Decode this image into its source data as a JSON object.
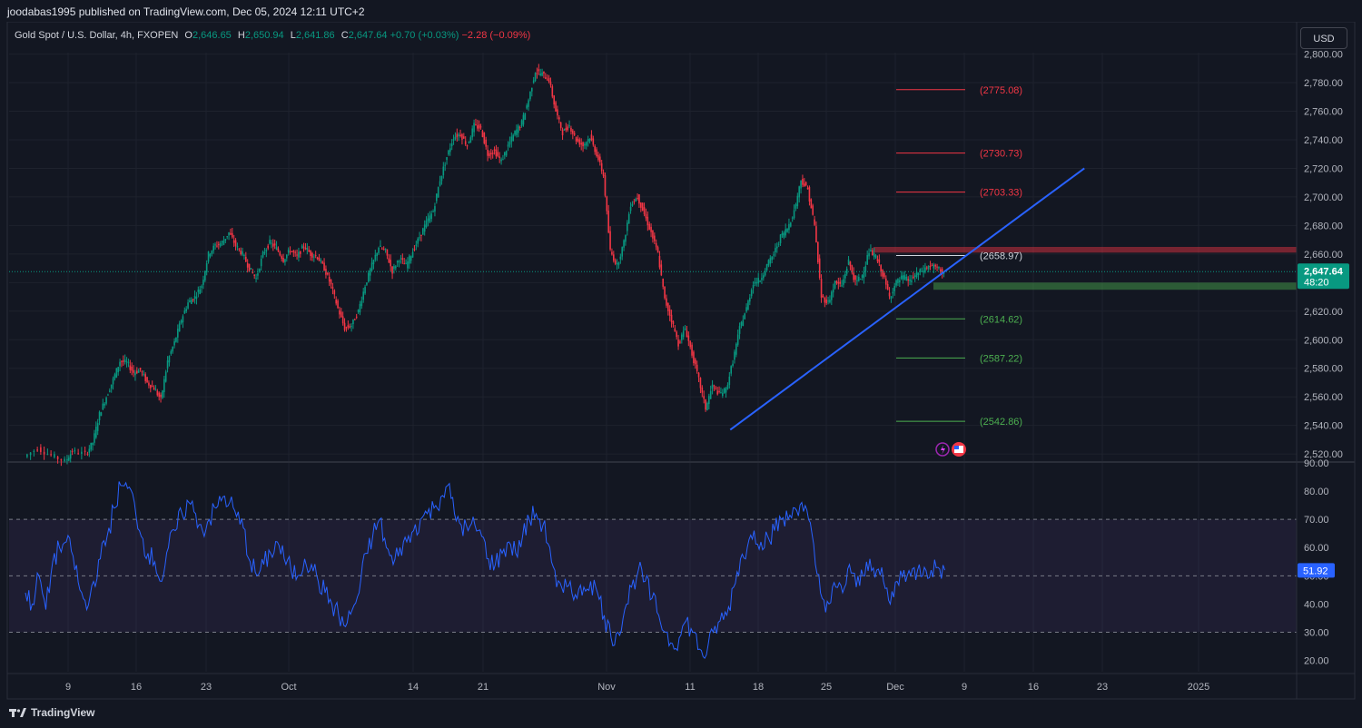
{
  "header": {
    "publisher": "joodabas1995 published on TradingView.com, Dec 05, 2024 12:11 UTC+2",
    "symbol": "Gold Spot / U.S. Dollar, 4h, FXOPEN",
    "open_label": "O",
    "open": "2,646.65",
    "high_label": "H",
    "high": "2,650.94",
    "low_label": "L",
    "low": "2,641.86",
    "close_label": "C",
    "close": "2,647.64",
    "change": "+0.70 (+0.03%)",
    "change2": "−2.28 (−0.09%)"
  },
  "currency": "USD",
  "footer": {
    "brand": "TradingView"
  },
  "colors": {
    "up": "#089981",
    "down": "#f23645",
    "trendline": "#2962ff",
    "rsi": "#2962ff",
    "bg": "#131722"
  },
  "chart_data": {
    "type": "candlestick",
    "symbol": "XAUUSD",
    "timeframe": "4h",
    "price_axis_ticks": [
      "2,800.00",
      "2,780.00",
      "2,760.00",
      "2,740.00",
      "2,720.00",
      "2,700.00",
      "2,680.00",
      "2,660.00",
      "2,640.00",
      "2,620.00",
      "2,600.00",
      "2,580.00",
      "2,560.00",
      "2,540.00",
      "2,520.00"
    ],
    "price_range": [
      2515,
      2801
    ],
    "time_axis_ticks": [
      "9",
      "16",
      "23",
      "Oct",
      "14",
      "21",
      "Nov",
      "11",
      "18",
      "25",
      "Dec",
      "9",
      "16",
      "23",
      "2025"
    ],
    "close_path": [
      [
        0,
        2518
      ],
      [
        2,
        2524
      ],
      [
        4,
        2519
      ],
      [
        6,
        2515
      ],
      [
        7,
        2522
      ],
      [
        9,
        2520
      ],
      [
        10,
        2528
      ],
      [
        11,
        2548
      ],
      [
        12,
        2560
      ],
      [
        13,
        2572
      ],
      [
        14,
        2585
      ],
      [
        15,
        2584
      ],
      [
        16,
        2577
      ],
      [
        17,
        2579
      ],
      [
        18,
        2570
      ],
      [
        19,
        2566
      ],
      [
        20,
        2558
      ],
      [
        21,
        2585
      ],
      [
        22,
        2598
      ],
      [
        23,
        2614
      ],
      [
        24,
        2626
      ],
      [
        25,
        2630
      ],
      [
        26,
        2638
      ],
      [
        27,
        2660
      ],
      [
        28,
        2666
      ],
      [
        29,
        2668
      ],
      [
        30,
        2675
      ],
      [
        31,
        2666
      ],
      [
        32,
        2660
      ],
      [
        33,
        2650
      ],
      [
        34,
        2643
      ],
      [
        35,
        2660
      ],
      [
        36,
        2668
      ],
      [
        37,
        2664
      ],
      [
        38,
        2656
      ],
      [
        39,
        2663
      ],
      [
        40,
        2658
      ],
      [
        41,
        2666
      ],
      [
        42,
        2660
      ],
      [
        43,
        2658
      ],
      [
        44,
        2650
      ],
      [
        45,
        2638
      ],
      [
        46,
        2622
      ],
      [
        47,
        2608
      ],
      [
        48,
        2610
      ],
      [
        49,
        2620
      ],
      [
        50,
        2638
      ],
      [
        51,
        2652
      ],
      [
        52,
        2665
      ],
      [
        53,
        2662
      ],
      [
        54,
        2648
      ],
      [
        55,
        2657
      ],
      [
        56,
        2652
      ],
      [
        57,
        2662
      ],
      [
        58,
        2672
      ],
      [
        59,
        2682
      ],
      [
        60,
        2690
      ],
      [
        61,
        2712
      ],
      [
        62,
        2728
      ],
      [
        63,
        2742
      ],
      [
        64,
        2744
      ],
      [
        65,
        2736
      ],
      [
        66,
        2750
      ],
      [
        67,
        2748
      ],
      [
        68,
        2730
      ],
      [
        69,
        2732
      ],
      [
        70,
        2725
      ],
      [
        71,
        2736
      ],
      [
        72,
        2745
      ],
      [
        73,
        2752
      ],
      [
        74,
        2768
      ],
      [
        75,
        2788
      ],
      [
        76,
        2786
      ],
      [
        77,
        2782
      ],
      [
        78,
        2760
      ],
      [
        79,
        2745
      ],
      [
        80,
        2750
      ],
      [
        81,
        2740
      ],
      [
        82,
        2736
      ],
      [
        83,
        2742
      ],
      [
        84,
        2730
      ],
      [
        85,
        2715
      ],
      [
        86,
        2662
      ],
      [
        87,
        2652
      ],
      [
        88,
        2668
      ],
      [
        89,
        2695
      ],
      [
        90,
        2700
      ],
      [
        91,
        2688
      ],
      [
        92,
        2675
      ],
      [
        93,
        2660
      ],
      [
        94,
        2628
      ],
      [
        95,
        2614
      ],
      [
        96,
        2597
      ],
      [
        97,
        2608
      ],
      [
        98,
        2590
      ],
      [
        99,
        2572
      ],
      [
        100,
        2552
      ],
      [
        101,
        2568
      ],
      [
        102,
        2562
      ],
      [
        103,
        2565
      ],
      [
        104,
        2585
      ],
      [
        105,
        2608
      ],
      [
        106,
        2622
      ],
      [
        107,
        2640
      ],
      [
        108,
        2642
      ],
      [
        109,
        2652
      ],
      [
        110,
        2660
      ],
      [
        111,
        2672
      ],
      [
        112,
        2678
      ],
      [
        113,
        2690
      ],
      [
        114,
        2712
      ],
      [
        115,
        2705
      ],
      [
        116,
        2680
      ],
      [
        117,
        2630
      ],
      [
        118,
        2626
      ],
      [
        119,
        2640
      ],
      [
        120,
        2638
      ],
      [
        121,
        2655
      ],
      [
        122,
        2640
      ],
      [
        123,
        2645
      ],
      [
        124,
        2662
      ],
      [
        125,
        2658
      ],
      [
        126,
        2646
      ],
      [
        127,
        2630
      ],
      [
        128,
        2640
      ],
      [
        129,
        2644
      ],
      [
        130,
        2641
      ],
      [
        131,
        2646
      ],
      [
        132,
        2649
      ],
      [
        133,
        2652
      ],
      [
        134,
        2650
      ],
      [
        135,
        2647
      ]
    ],
    "horizontal_levels": [
      {
        "label": "(2775.08)",
        "price": 2775.08,
        "color": "#f23645"
      },
      {
        "label": "(2730.73)",
        "price": 2730.73,
        "color": "#f23645"
      },
      {
        "label": "(2703.33)",
        "price": 2703.33,
        "color": "#f23645"
      },
      {
        "label": "(2658.97)",
        "price": 2658.97,
        "color": "#d1d4dc"
      },
      {
        "label": "(2614.62)",
        "price": 2614.62,
        "color": "#4caf50"
      },
      {
        "label": "(2587.22)",
        "price": 2587.22,
        "color": "#4caf50"
      },
      {
        "label": "(2542.86)",
        "price": 2542.86,
        "color": "#4caf50"
      }
    ],
    "resistance_zone": [
      2661,
      2665
    ],
    "support_zone": [
      2635,
      2640
    ],
    "trendline": [
      [
        103.5,
        2537
      ],
      [
        155.5,
        2720
      ]
    ],
    "last_price": {
      "value": "2,647.64",
      "countdown": "48:20"
    },
    "rsi": {
      "ticks": [
        "90.00",
        "80.00",
        "70.00",
        "60.00",
        "50.00",
        "40.00",
        "30.00",
        "20.00"
      ],
      "range": [
        16,
        90
      ],
      "bands": [
        30,
        50,
        70
      ],
      "last": "51.92",
      "values": [
        [
          0,
          44
        ],
        [
          1,
          40
        ],
        [
          2,
          50
        ],
        [
          3,
          38
        ],
        [
          4,
          55
        ],
        [
          5,
          60
        ],
        [
          6,
          62
        ],
        [
          7,
          57
        ],
        [
          8,
          45
        ],
        [
          9,
          38
        ],
        [
          10,
          48
        ],
        [
          11,
          56
        ],
        [
          12,
          64
        ],
        [
          13,
          74
        ],
        [
          14,
          82
        ],
        [
          15,
          81
        ],
        [
          16,
          76
        ],
        [
          17,
          64
        ],
        [
          18,
          58
        ],
        [
          19,
          55
        ],
        [
          20,
          48
        ],
        [
          21,
          60
        ],
        [
          22,
          66
        ],
        [
          23,
          72
        ],
        [
          24,
          76
        ],
        [
          25,
          72
        ],
        [
          26,
          66
        ],
        [
          27,
          70
        ],
        [
          28,
          74
        ],
        [
          29,
          78
        ],
        [
          30,
          76
        ],
        [
          31,
          71
        ],
        [
          32,
          67
        ],
        [
          33,
          55
        ],
        [
          34,
          50
        ],
        [
          35,
          54
        ],
        [
          36,
          58
        ],
        [
          37,
          62
        ],
        [
          38,
          56
        ],
        [
          39,
          52
        ],
        [
          40,
          50
        ],
        [
          41,
          56
        ],
        [
          42,
          54
        ],
        [
          43,
          48
        ],
        [
          44,
          44
        ],
        [
          45,
          40
        ],
        [
          46,
          36
        ],
        [
          47,
          32
        ],
        [
          48,
          38
        ],
        [
          49,
          44
        ],
        [
          50,
          58
        ],
        [
          51,
          64
        ],
        [
          52,
          70
        ],
        [
          53,
          60
        ],
        [
          54,
          54
        ],
        [
          55,
          60
        ],
        [
          56,
          62
        ],
        [
          57,
          66
        ],
        [
          58,
          70
        ],
        [
          59,
          72
        ],
        [
          60,
          74
        ],
        [
          61,
          78
        ],
        [
          62,
          82
        ],
        [
          63,
          72
        ],
        [
          64,
          68
        ],
        [
          65,
          66
        ],
        [
          66,
          68
        ],
        [
          67,
          64
        ],
        [
          68,
          56
        ],
        [
          69,
          54
        ],
        [
          70,
          58
        ],
        [
          71,
          62
        ],
        [
          72,
          58
        ],
        [
          73,
          64
        ],
        [
          74,
          70
        ],
        [
          75,
          72
        ],
        [
          76,
          68
        ],
        [
          77,
          60
        ],
        [
          78,
          46
        ],
        [
          79,
          44
        ],
        [
          80,
          48
        ],
        [
          81,
          42
        ],
        [
          82,
          46
        ],
        [
          83,
          48
        ],
        [
          84,
          44
        ],
        [
          85,
          36
        ],
        [
          86,
          28
        ],
        [
          87,
          30
        ],
        [
          88,
          38
        ],
        [
          89,
          46
        ],
        [
          90,
          52
        ],
        [
          91,
          48
        ],
        [
          92,
          42
        ],
        [
          93,
          36
        ],
        [
          94,
          30
        ],
        [
          95,
          26
        ],
        [
          96,
          28
        ],
        [
          97,
          34
        ],
        [
          98,
          30
        ],
        [
          99,
          24
        ],
        [
          100,
          22
        ],
        [
          101,
          30
        ],
        [
          102,
          34
        ],
        [
          103,
          36
        ],
        [
          104,
          46
        ],
        [
          105,
          56
        ],
        [
          106,
          60
        ],
        [
          107,
          66
        ],
        [
          108,
          62
        ],
        [
          109,
          64
        ],
        [
          110,
          66
        ],
        [
          111,
          70
        ],
        [
          112,
          70
        ],
        [
          113,
          74
        ],
        [
          114,
          76
        ],
        [
          115,
          70
        ],
        [
          116,
          54
        ],
        [
          117,
          42
        ],
        [
          118,
          40
        ],
        [
          119,
          46
        ],
        [
          120,
          44
        ],
        [
          121,
          54
        ],
        [
          122,
          46
        ],
        [
          123,
          50
        ],
        [
          124,
          56
        ],
        [
          125,
          52
        ],
        [
          126,
          48
        ],
        [
          127,
          40
        ],
        [
          128,
          48
        ],
        [
          129,
          52
        ],
        [
          130,
          50
        ],
        [
          131,
          52
        ],
        [
          132,
          53
        ],
        [
          133,
          52
        ],
        [
          134,
          53
        ],
        [
          135,
          52
        ]
      ]
    }
  }
}
